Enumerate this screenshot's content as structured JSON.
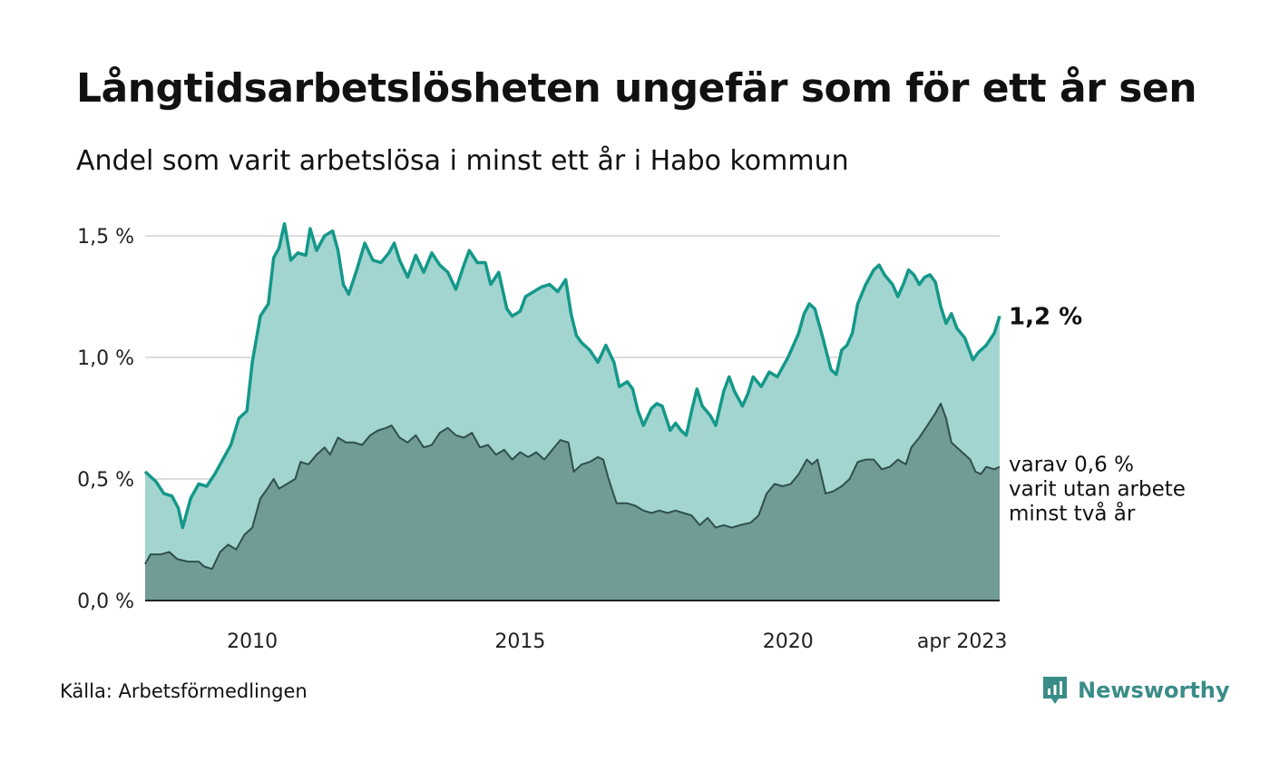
{
  "title": "Långtidsarbetslösheten ungefär som för ett år sen",
  "subtitle": "Andel som varit arbetslösa i minst ett år i Habo kommun",
  "source": "Källa: Arbetsförmedlingen",
  "brand": "Newsworthy",
  "colors": {
    "total_area": "#a3d5d0",
    "total_line": "#14988a",
    "sub_area": "#709b96",
    "sub_line": "#2f4f4c",
    "grid": "#dddddd",
    "brand": "#3a8c87"
  },
  "chart_data": {
    "type": "area",
    "x_start": "2008-01",
    "x_end": "2023-04",
    "x_ticks": [
      {
        "x": 2010.0,
        "label": "2010"
      },
      {
        "x": 2015.0,
        "label": "2015"
      },
      {
        "x": 2020.0,
        "label": "2020"
      },
      {
        "x": 2023.25,
        "label": "apr 2023"
      }
    ],
    "y_ticks": [
      {
        "v": 0.0,
        "label": "0,0 %"
      },
      {
        "v": 0.5,
        "label": "0,5 %"
      },
      {
        "v": 1.0,
        "label": "1,0 %"
      },
      {
        "v": 1.5,
        "label": "1,5 %"
      }
    ],
    "ylim": [
      0,
      1.5
    ],
    "end_label": "1,2 %",
    "sub_label_lines": [
      "varav 0,6 %",
      "varit utan arbete",
      "minst två år"
    ],
    "series": [
      {
        "name": "total",
        "points": [
          [
            2008.0,
            0.53
          ],
          [
            2008.2,
            0.49
          ],
          [
            2008.35,
            0.44
          ],
          [
            2008.5,
            0.43
          ],
          [
            2008.62,
            0.38
          ],
          [
            2008.7,
            0.3
          ],
          [
            2008.85,
            0.42
          ],
          [
            2009.0,
            0.48
          ],
          [
            2009.15,
            0.47
          ],
          [
            2009.3,
            0.52
          ],
          [
            2009.45,
            0.58
          ],
          [
            2009.6,
            0.64
          ],
          [
            2009.75,
            0.75
          ],
          [
            2009.9,
            0.78
          ],
          [
            2010.0,
            0.98
          ],
          [
            2010.15,
            1.17
          ],
          [
            2010.3,
            1.22
          ],
          [
            2010.4,
            1.41
          ],
          [
            2010.5,
            1.45
          ],
          [
            2010.6,
            1.55
          ],
          [
            2010.72,
            1.4
          ],
          [
            2010.85,
            1.43
          ],
          [
            2011.0,
            1.42
          ],
          [
            2011.08,
            1.53
          ],
          [
            2011.2,
            1.44
          ],
          [
            2011.35,
            1.5
          ],
          [
            2011.5,
            1.52
          ],
          [
            2011.6,
            1.44
          ],
          [
            2011.7,
            1.3
          ],
          [
            2011.8,
            1.26
          ],
          [
            2011.95,
            1.36
          ],
          [
            2012.1,
            1.47
          ],
          [
            2012.25,
            1.4
          ],
          [
            2012.4,
            1.39
          ],
          [
            2012.55,
            1.43
          ],
          [
            2012.65,
            1.47
          ],
          [
            2012.75,
            1.4
          ],
          [
            2012.9,
            1.33
          ],
          [
            2013.05,
            1.42
          ],
          [
            2013.2,
            1.35
          ],
          [
            2013.35,
            1.43
          ],
          [
            2013.5,
            1.38
          ],
          [
            2013.65,
            1.35
          ],
          [
            2013.8,
            1.28
          ],
          [
            2013.95,
            1.38
          ],
          [
            2014.05,
            1.44
          ],
          [
            2014.2,
            1.39
          ],
          [
            2014.35,
            1.39
          ],
          [
            2014.45,
            1.3
          ],
          [
            2014.6,
            1.35
          ],
          [
            2014.75,
            1.2
          ],
          [
            2014.85,
            1.17
          ],
          [
            2015.0,
            1.19
          ],
          [
            2015.1,
            1.25
          ],
          [
            2015.25,
            1.27
          ],
          [
            2015.4,
            1.29
          ],
          [
            2015.55,
            1.3
          ],
          [
            2015.7,
            1.27
          ],
          [
            2015.85,
            1.32
          ],
          [
            2015.95,
            1.18
          ],
          [
            2016.05,
            1.09
          ],
          [
            2016.15,
            1.06
          ],
          [
            2016.3,
            1.03
          ],
          [
            2016.45,
            0.98
          ],
          [
            2016.6,
            1.05
          ],
          [
            2016.75,
            0.98
          ],
          [
            2016.85,
            0.88
          ],
          [
            2017.0,
            0.9
          ],
          [
            2017.1,
            0.87
          ],
          [
            2017.2,
            0.78
          ],
          [
            2017.3,
            0.72
          ],
          [
            2017.45,
            0.79
          ],
          [
            2017.55,
            0.81
          ],
          [
            2017.65,
            0.8
          ],
          [
            2017.8,
            0.7
          ],
          [
            2017.9,
            0.73
          ],
          [
            2018.0,
            0.7
          ],
          [
            2018.1,
            0.68
          ],
          [
            2018.2,
            0.78
          ],
          [
            2018.3,
            0.87
          ],
          [
            2018.4,
            0.8
          ],
          [
            2018.55,
            0.76
          ],
          [
            2018.65,
            0.72
          ],
          [
            2018.8,
            0.86
          ],
          [
            2018.9,
            0.92
          ],
          [
            2019.0,
            0.86
          ],
          [
            2019.15,
            0.8
          ],
          [
            2019.25,
            0.85
          ],
          [
            2019.35,
            0.92
          ],
          [
            2019.5,
            0.88
          ],
          [
            2019.65,
            0.94
          ],
          [
            2019.8,
            0.92
          ],
          [
            2019.9,
            0.96
          ],
          [
            2020.0,
            1.0
          ],
          [
            2020.1,
            1.05
          ],
          [
            2020.2,
            1.1
          ],
          [
            2020.3,
            1.18
          ],
          [
            2020.4,
            1.22
          ],
          [
            2020.5,
            1.2
          ],
          [
            2020.65,
            1.08
          ],
          [
            2020.8,
            0.95
          ],
          [
            2020.9,
            0.93
          ],
          [
            2021.0,
            1.03
          ],
          [
            2021.1,
            1.05
          ],
          [
            2021.2,
            1.1
          ],
          [
            2021.3,
            1.22
          ],
          [
            2021.45,
            1.3
          ],
          [
            2021.6,
            1.36
          ],
          [
            2021.7,
            1.38
          ],
          [
            2021.8,
            1.34
          ],
          [
            2021.95,
            1.3
          ],
          [
            2022.05,
            1.25
          ],
          [
            2022.15,
            1.3
          ],
          [
            2022.25,
            1.36
          ],
          [
            2022.35,
            1.34
          ],
          [
            2022.45,
            1.3
          ],
          [
            2022.55,
            1.33
          ],
          [
            2022.65,
            1.34
          ],
          [
            2022.75,
            1.31
          ],
          [
            2022.85,
            1.21
          ],
          [
            2022.95,
            1.14
          ],
          [
            2023.05,
            1.18
          ],
          [
            2023.15,
            1.12
          ],
          [
            2023.3,
            1.08
          ],
          [
            2023.45,
            0.99
          ],
          [
            2023.55,
            1.02
          ],
          [
            2023.7,
            1.05
          ],
          [
            2023.85,
            1.1
          ],
          [
            2023.95,
            1.17
          ]
        ]
      },
      {
        "name": "sub",
        "points": [
          [
            2008.0,
            0.15
          ],
          [
            2008.1,
            0.19
          ],
          [
            2008.3,
            0.19
          ],
          [
            2008.45,
            0.2
          ],
          [
            2008.6,
            0.17
          ],
          [
            2008.8,
            0.16
          ],
          [
            2009.0,
            0.16
          ],
          [
            2009.1,
            0.14
          ],
          [
            2009.25,
            0.13
          ],
          [
            2009.4,
            0.2
          ],
          [
            2009.55,
            0.23
          ],
          [
            2009.7,
            0.21
          ],
          [
            2009.85,
            0.27
          ],
          [
            2010.0,
            0.3
          ],
          [
            2010.15,
            0.42
          ],
          [
            2010.25,
            0.45
          ],
          [
            2010.4,
            0.5
          ],
          [
            2010.5,
            0.46
          ],
          [
            2010.65,
            0.48
          ],
          [
            2010.8,
            0.5
          ],
          [
            2010.9,
            0.57
          ],
          [
            2011.05,
            0.56
          ],
          [
            2011.2,
            0.6
          ],
          [
            2011.35,
            0.63
          ],
          [
            2011.45,
            0.6
          ],
          [
            2011.6,
            0.67
          ],
          [
            2011.75,
            0.65
          ],
          [
            2011.9,
            0.65
          ],
          [
            2012.05,
            0.64
          ],
          [
            2012.2,
            0.68
          ],
          [
            2012.35,
            0.7
          ],
          [
            2012.5,
            0.71
          ],
          [
            2012.6,
            0.72
          ],
          [
            2012.75,
            0.67
          ],
          [
            2012.9,
            0.65
          ],
          [
            2013.05,
            0.68
          ],
          [
            2013.2,
            0.63
          ],
          [
            2013.35,
            0.64
          ],
          [
            2013.5,
            0.69
          ],
          [
            2013.65,
            0.71
          ],
          [
            2013.8,
            0.68
          ],
          [
            2013.95,
            0.67
          ],
          [
            2014.1,
            0.69
          ],
          [
            2014.25,
            0.63
          ],
          [
            2014.4,
            0.64
          ],
          [
            2014.55,
            0.6
          ],
          [
            2014.7,
            0.62
          ],
          [
            2014.85,
            0.58
          ],
          [
            2015.0,
            0.61
          ],
          [
            2015.15,
            0.59
          ],
          [
            2015.3,
            0.61
          ],
          [
            2015.45,
            0.58
          ],
          [
            2015.6,
            0.62
          ],
          [
            2015.75,
            0.66
          ],
          [
            2015.9,
            0.65
          ],
          [
            2016.0,
            0.53
          ],
          [
            2016.15,
            0.56
          ],
          [
            2016.3,
            0.57
          ],
          [
            2016.45,
            0.59
          ],
          [
            2016.55,
            0.58
          ],
          [
            2016.65,
            0.5
          ],
          [
            2016.8,
            0.4
          ],
          [
            2017.0,
            0.4
          ],
          [
            2017.15,
            0.39
          ],
          [
            2017.3,
            0.37
          ],
          [
            2017.45,
            0.36
          ],
          [
            2017.6,
            0.37
          ],
          [
            2017.75,
            0.36
          ],
          [
            2017.9,
            0.37
          ],
          [
            2018.05,
            0.36
          ],
          [
            2018.2,
            0.35
          ],
          [
            2018.35,
            0.31
          ],
          [
            2018.5,
            0.34
          ],
          [
            2018.65,
            0.3
          ],
          [
            2018.8,
            0.31
          ],
          [
            2018.95,
            0.3
          ],
          [
            2019.1,
            0.31
          ],
          [
            2019.3,
            0.32
          ],
          [
            2019.45,
            0.35
          ],
          [
            2019.6,
            0.44
          ],
          [
            2019.75,
            0.48
          ],
          [
            2019.9,
            0.47
          ],
          [
            2020.05,
            0.48
          ],
          [
            2020.2,
            0.52
          ],
          [
            2020.35,
            0.58
          ],
          [
            2020.45,
            0.56
          ],
          [
            2020.55,
            0.58
          ],
          [
            2020.7,
            0.44
          ],
          [
            2020.85,
            0.45
          ],
          [
            2021.0,
            0.47
          ],
          [
            2021.15,
            0.5
          ],
          [
            2021.3,
            0.57
          ],
          [
            2021.45,
            0.58
          ],
          [
            2021.6,
            0.58
          ],
          [
            2021.75,
            0.54
          ],
          [
            2021.9,
            0.55
          ],
          [
            2022.05,
            0.58
          ],
          [
            2022.2,
            0.56
          ],
          [
            2022.3,
            0.63
          ],
          [
            2022.45,
            0.67
          ],
          [
            2022.6,
            0.72
          ],
          [
            2022.75,
            0.77
          ],
          [
            2022.85,
            0.81
          ],
          [
            2022.95,
            0.75
          ],
          [
            2023.05,
            0.65
          ],
          [
            2023.15,
            0.63
          ],
          [
            2023.25,
            0.61
          ],
          [
            2023.4,
            0.58
          ],
          [
            2023.5,
            0.53
          ],
          [
            2023.6,
            0.52
          ],
          [
            2023.7,
            0.55
          ],
          [
            2023.85,
            0.54
          ],
          [
            2023.95,
            0.55
          ]
        ]
      }
    ]
  }
}
